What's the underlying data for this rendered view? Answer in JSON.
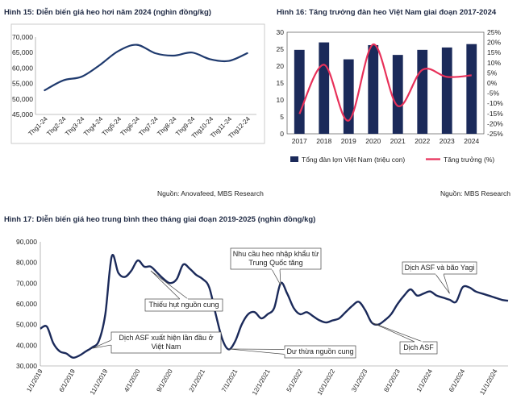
{
  "chart_data": [
    {
      "id": "fig15",
      "type": "line",
      "title": "Hình 15: Diễn biến giá heo hơi năm 2024 (nghìn đồng/kg)",
      "source": "Nguồn: Anovafeed, MBS Research",
      "categories": [
        "Thg1-24",
        "Thg2-24",
        "Thg3-24",
        "Thg4-24",
        "Thg5-24",
        "Thg6-24",
        "Thg7-24",
        "Thg8-24",
        "Thg9-24",
        "Thg10-24",
        "Thg11-24",
        "Thg12-24"
      ],
      "y_ticks": [
        45000,
        50000,
        55000,
        60000,
        65000,
        70000
      ],
      "y_tick_labels": [
        "45,000",
        "50,000",
        "55,000",
        "60,000",
        "65,000",
        "70,000"
      ],
      "ylim": [
        45000,
        70000
      ],
      "series": [
        {
          "name": "Giá heo hơi",
          "color": "#1f3a6e",
          "values": [
            52800,
            56000,
            57200,
            61000,
            65500,
            67500,
            64800,
            64000,
            65000,
            62800,
            62300,
            64800
          ]
        }
      ]
    },
    {
      "id": "fig16",
      "type": "bar",
      "title": "Hình 16: Tăng trưởng đàn heo Việt Nam giai đoạn 2017-2024",
      "source": "Nguồn: MBS Research",
      "categories": [
        "2017",
        "2018",
        "2019",
        "2020",
        "2021",
        "2022",
        "2023",
        "2024"
      ],
      "ylim": [
        0,
        30
      ],
      "y_ticks": [
        0,
        5,
        10,
        15,
        20,
        25,
        30
      ],
      "y_tick_labels": [
        "0",
        "5",
        "10",
        "15",
        "20",
        "25",
        "30"
      ],
      "y2lim": [
        -25,
        25
      ],
      "y2_ticks": [
        -25,
        -20,
        -15,
        -10,
        -5,
        0,
        5,
        10,
        15,
        20,
        25
      ],
      "y2_tick_labels": [
        "-25%",
        "-20%",
        "-15%",
        "-10%",
        "-5%",
        "0%",
        "5%",
        "10%",
        "15%",
        "20%",
        "25%"
      ],
      "series": [
        {
          "name": "Tổng đàn lợn Việt Nam (triệu con)",
          "type": "bar",
          "color": "#1b2a5a",
          "values": [
            24.8,
            27.0,
            22.0,
            26.2,
            23.3,
            24.8,
            25.5,
            26.5
          ]
        },
        {
          "name": "Tăng trưởng (%)",
          "type": "line",
          "color": "#e8315a",
          "axis": "right",
          "values": [
            -15.2,
            9.0,
            -18.5,
            19.0,
            -11.3,
            6.5,
            3.0,
            3.8
          ]
        }
      ]
    },
    {
      "id": "fig17",
      "type": "line",
      "title": "Hình 17: Diễn biến giá heo trung bình theo tháng giai đoạn 2019-2025 (nghìn đồng/kg)",
      "ylim": [
        30000,
        90000
      ],
      "y_ticks": [
        30000,
        40000,
        50000,
        60000,
        70000,
        80000,
        90000
      ],
      "y_tick_labels": [
        "30,000",
        "40,000",
        "50,000",
        "60,000",
        "70,000",
        "80,000",
        "90,000"
      ],
      "x_tick_labels": [
        "1/1/2019",
        "6/1/2019",
        "11/1/2019",
        "4/1/2020",
        "9/1/2020",
        "2/1/2021",
        "7/1/2021",
        "12/1/2021",
        "5/1/2022",
        "10/1/2022",
        "3/1/2023",
        "8/1/2023",
        "1/1/2024",
        "6/1/2024",
        "11/1/2024"
      ],
      "x_tick_month_index": [
        0,
        5,
        10,
        15,
        20,
        25,
        30,
        35,
        40,
        45,
        50,
        55,
        60,
        65,
        70
      ],
      "series": [
        {
          "name": "Giá heo trung bình",
          "color": "#1b2a5a",
          "values": [
            48000,
            49000,
            41000,
            37000,
            36000,
            34000,
            35000,
            37000,
            39000,
            42000,
            55000,
            83000,
            75000,
            73000,
            76000,
            81000,
            78000,
            78000,
            75000,
            72000,
            70000,
            72000,
            79000,
            77000,
            74000,
            72000,
            68000,
            55000,
            43000,
            38000,
            42000,
            50000,
            55000,
            56000,
            53000,
            55000,
            58000,
            70000,
            65000,
            58000,
            55000,
            56000,
            54000,
            52000,
            51000,
            52000,
            53000,
            56000,
            59000,
            61000,
            57000,
            51000,
            50000,
            52000,
            55000,
            60000,
            64000,
            67000,
            64000,
            65000,
            66000,
            64000,
            63000,
            62000,
            61000,
            68000,
            68000,
            66000,
            65000,
            64000,
            63000,
            62000,
            61500
          ]
        }
      ],
      "annotations": [
        {
          "id": "ann-asf-first",
          "lines": [
            "Dịch ASF xuất hiện lần đầu ở",
            "Việt Nam"
          ],
          "month_index": 8
        },
        {
          "id": "ann-supply-shortage",
          "lines": [
            "Thiếu hụt nguồn cung"
          ],
          "month_index": 17
        },
        {
          "id": "ann-import-demand",
          "lines": [
            "Nhu cầu heo nhập khẩu từ",
            "Trung Quốc tăng"
          ],
          "month_index": 37
        },
        {
          "id": "ann-oversupply",
          "lines": [
            "Dư thừa nguồn cung"
          ],
          "month_index": 29
        },
        {
          "id": "ann-asf",
          "lines": [
            "Dịch ASF"
          ],
          "month_index": 51
        },
        {
          "id": "ann-asf-yagi",
          "lines": [
            "Dịch ASF và bão Yagi"
          ],
          "month_index": 63
        }
      ]
    }
  ]
}
